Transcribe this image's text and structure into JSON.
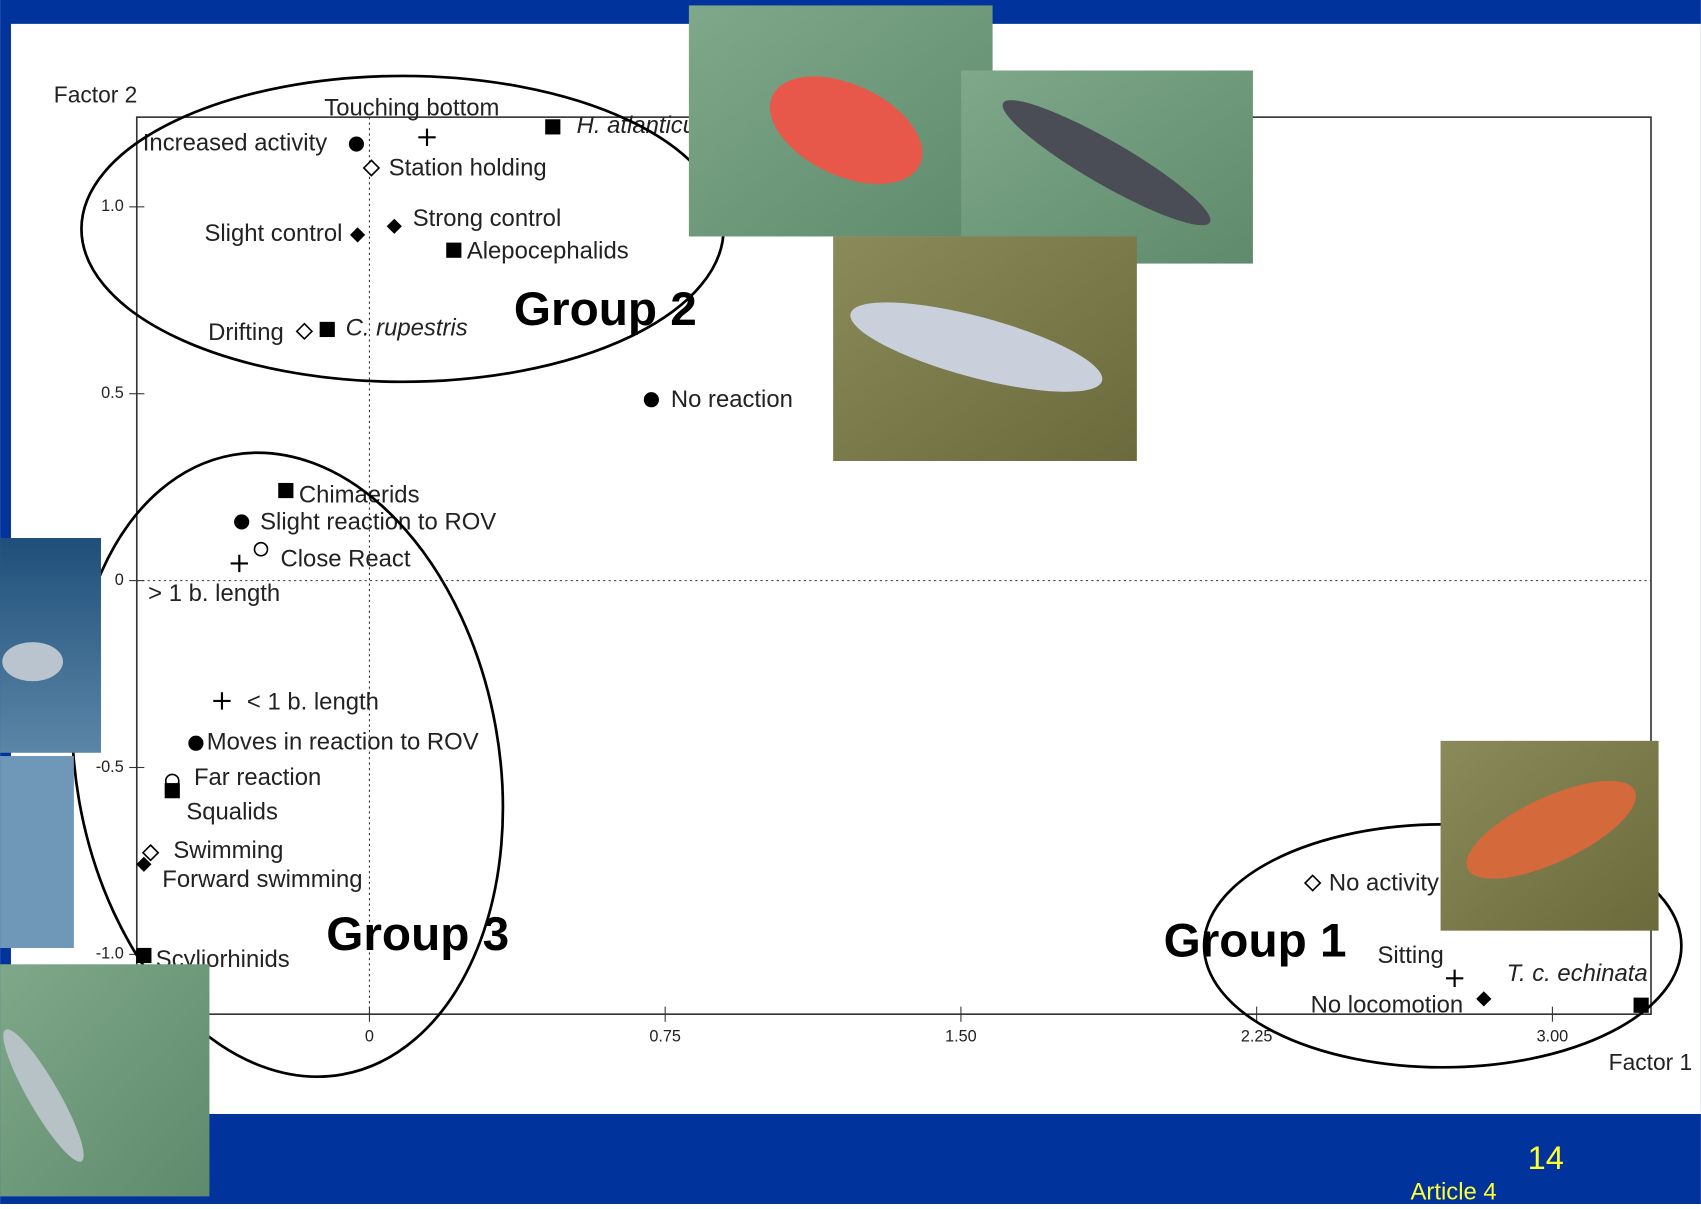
{
  "chart_data": {
    "type": "scatter",
    "x_label": "Factor 1",
    "y_label": "Factor 2",
    "xlim": [
      -0.59,
      3.25
    ],
    "ylim": [
      -1.16,
      1.24
    ],
    "xticks": [
      0,
      0.75,
      {
        "value": 1.5,
        "label": "1.50"
      },
      {
        "value": 2.25,
        "label": "2.25"
      },
      {
        "value": 3,
        "label": "3.00"
      }
    ],
    "yticks": [
      {
        "value": -1,
        "label": "-1.0"
      },
      -0.5,
      0,
      0.5,
      {
        "value": 1,
        "label": "1.0"
      }
    ],
    "color": "#000000",
    "points": [
      {
        "label": "Increased activity",
        "x": -0.033,
        "y": 1.168,
        "marker": "circle"
      },
      {
        "label": "Touching bottom",
        "x": 0.146,
        "y": 1.186,
        "marker": "plus"
      },
      {
        "label": "H. atlanticus",
        "x": 0.465,
        "y": 1.214,
        "marker": "square",
        "style": "italic"
      },
      {
        "label": "Station holding",
        "x": 0.005,
        "y": 1.104,
        "marker": "open-diamond"
      },
      {
        "label": "Strong control",
        "x": 0.063,
        "y": 0.948,
        "marker": "diamond"
      },
      {
        "label": "Slight control",
        "x": -0.03,
        "y": 0.925,
        "marker": "diamond"
      },
      {
        "label": "Alepocephalids",
        "x": 0.214,
        "y": 0.884,
        "marker": "square"
      },
      {
        "label": "Drifting",
        "x": -0.165,
        "y": 0.667,
        "marker": "open-diamond"
      },
      {
        "label": "C. rupestris",
        "x": -0.107,
        "y": 0.672,
        "marker": "square",
        "style": "italic"
      },
      {
        "label": "No reaction",
        "x": 0.715,
        "y": 0.484,
        "marker": "circle"
      },
      {
        "label": "Chimaerids",
        "x": -0.212,
        "y": 0.241,
        "marker": "square"
      },
      {
        "label": "Slight reaction to ROV",
        "x": -0.324,
        "y": 0.157,
        "marker": "circle"
      },
      {
        "label": "Close React",
        "x": -0.275,
        "y": 0.084,
        "marker": "open-circle"
      },
      {
        "label": "> 1 b. length",
        "x": -0.33,
        "y": 0.046,
        "marker": "plus"
      },
      {
        "label": "< 1 b. length",
        "x": -0.374,
        "y": -0.322,
        "marker": "plus"
      },
      {
        "label": "Moves in reaction to ROV",
        "x": -0.44,
        "y": -0.435,
        "marker": "circle"
      },
      {
        "label": "Far reaction",
        "x": -0.5,
        "y": -0.536,
        "marker": "open-circle"
      },
      {
        "label": "Squalids",
        "x": -0.5,
        "y": -0.562,
        "marker": "square"
      },
      {
        "label": "Swimming",
        "x": -0.555,
        "y": -0.728,
        "marker": "open-diamond"
      },
      {
        "label": "Forward swimming",
        "x": -0.572,
        "y": -0.759,
        "marker": "diamond"
      },
      {
        "label": "Scyliorhinids",
        "x": -0.572,
        "y": -1.003,
        "marker": "square"
      },
      {
        "label": "No activity",
        "x": 2.392,
        "y": -0.809,
        "marker": "open-diamond"
      },
      {
        "label": "Sitting",
        "x": 2.752,
        "y": -1.064,
        "marker": "plus"
      },
      {
        "label": "T. c. echinata",
        "x": 3.225,
        "y": -1.136,
        "marker": "square",
        "style": "italic"
      },
      {
        "label": "No locomotion",
        "x": 2.826,
        "y": -1.119,
        "marker": "diamond"
      }
    ],
    "groups": [
      "Group 2",
      "Group 3",
      "Group 1"
    ]
  },
  "footer": {
    "page_number": "14",
    "source": "Article 4"
  }
}
